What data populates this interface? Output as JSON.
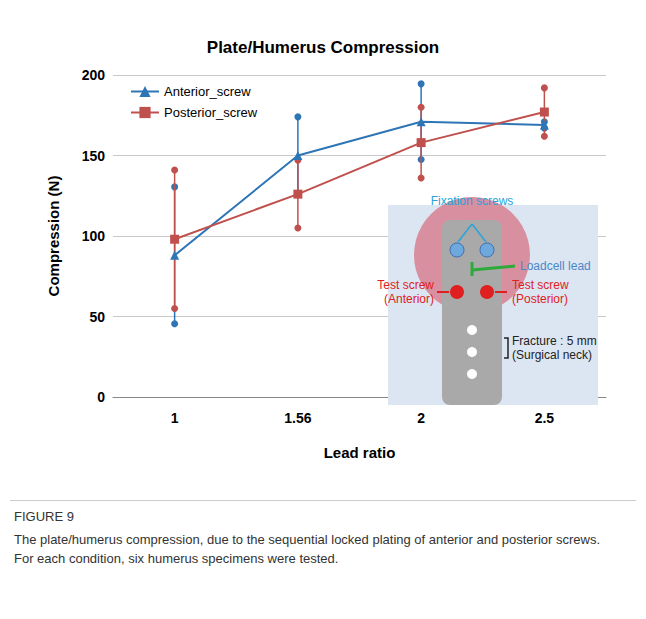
{
  "chart_data": {
    "type": "line",
    "title": "Plate/Humerus Compression",
    "x_label": "Lead ratio",
    "y_label": "Compression (N)",
    "categories": [
      "1",
      "1.56",
      "2",
      "2.5"
    ],
    "series": [
      {
        "name": "Anterior_screw",
        "color": "#2e75b6",
        "marker": "triangle",
        "line_style": "solid",
        "values": [
          88,
          150,
          171,
          169
        ],
        "error": [
          42.5,
          24,
          23.5,
          2
        ]
      },
      {
        "name": "Posterior_screw",
        "color": "#c0504d",
        "marker": "square",
        "line_style": "solid",
        "values": [
          98,
          126,
          158,
          177
        ],
        "error": [
          43,
          21,
          22,
          15
        ]
      }
    ],
    "ylim": [
      0,
      200
    ],
    "yticks": [
      0,
      50,
      100,
      150,
      200
    ],
    "grid": true,
    "legend": "top-left",
    "annotations": [
      {
        "text": "Fixation screws",
        "color": "#29a3d9"
      },
      {
        "text": "Loadcell lead",
        "color": "#4a86c8"
      },
      {
        "text": "Test screw (Anterior)",
        "color": "#e02020"
      },
      {
        "text": "Test screw (Posterior)",
        "color": "#e02020"
      },
      {
        "text": "Fracture : 5 mm (Surgical neck)",
        "color": "#222222"
      }
    ],
    "caption": {
      "label": "FIGURE 9",
      "text": "The plate/humerus compression, due to the sequential locked plating of anterior and posterior screws. For each condition, six humerus specimens were tested."
    }
  }
}
